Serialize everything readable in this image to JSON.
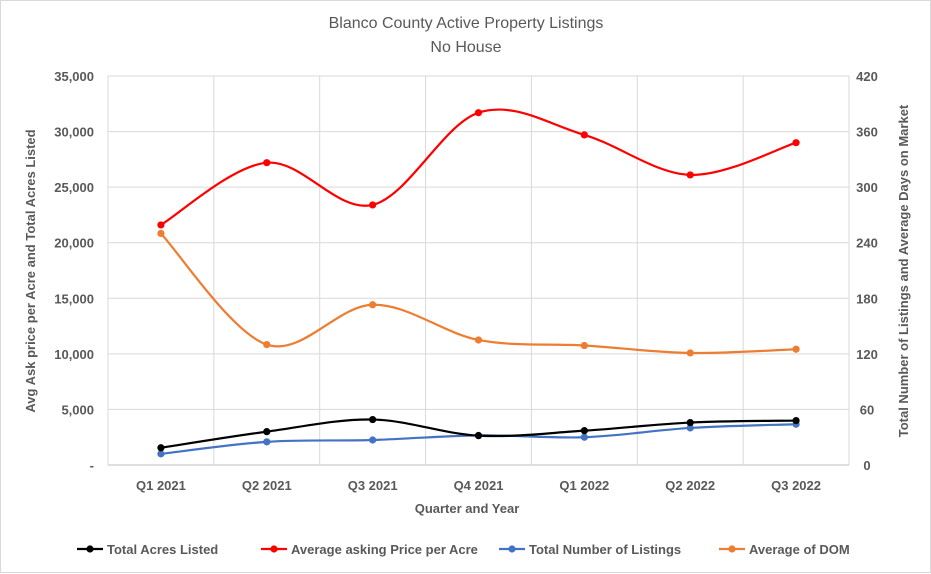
{
  "chart_data": {
    "type": "line",
    "title": "Blanco County Active Property Listings",
    "subtitle": "No House",
    "xlabel": "Quarter and Year",
    "ylabel": "Avg Ask price per Acre and Total Acres Listed",
    "y2label": "Total Number of Listings and Average Days on Market",
    "categories": [
      "Q1 2021",
      "Q2 2021",
      "Q3 2021",
      "Q4 2021",
      "Q1 2022",
      "Q2 2022",
      "Q3 2022"
    ],
    "ylim": [
      0,
      35000
    ],
    "y_ticks": [
      "-",
      "5,000",
      "10,000",
      "15,000",
      "20,000",
      "25,000",
      "30,000",
      "35,000"
    ],
    "y2lim": [
      0,
      420
    ],
    "y2_ticks": [
      "0",
      "60",
      "120",
      "180",
      "240",
      "300",
      "360",
      "420"
    ],
    "grid": true,
    "legend_position": "bottom",
    "series": [
      {
        "name": "Total Acres Listed",
        "axis": "left",
        "color": "#000000",
        "values": [
          1550,
          3000,
          4090,
          2640,
          3090,
          3820,
          4000
        ]
      },
      {
        "name": "Average asking Price per Acre",
        "axis": "left",
        "color": "#ff0000",
        "values": [
          21600,
          27200,
          23400,
          31700,
          29700,
          26100,
          29000
        ]
      },
      {
        "name": "Total Number of Listings",
        "axis": "right",
        "color": "#4472c4",
        "values": [
          12,
          25,
          27,
          32,
          30,
          40,
          44
        ]
      },
      {
        "name": "Average of DOM",
        "axis": "right",
        "color": "#ed7d31",
        "values": [
          250,
          130,
          173,
          135,
          129,
          121,
          125
        ]
      }
    ]
  }
}
